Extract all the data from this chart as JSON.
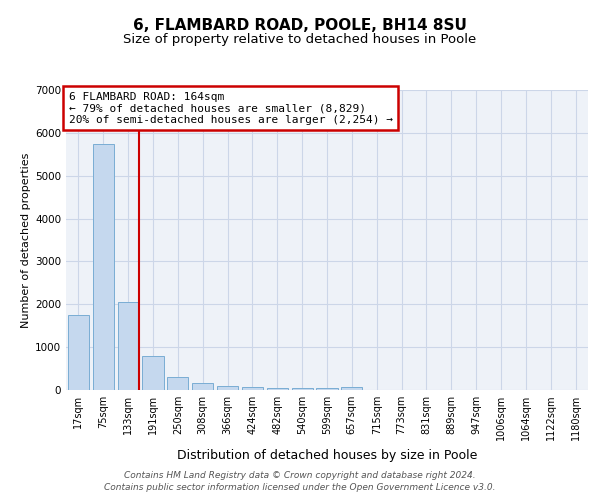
{
  "title": "6, FLAMBARD ROAD, POOLE, BH14 8SU",
  "subtitle": "Size of property relative to detached houses in Poole",
  "xlabel": "Distribution of detached houses by size in Poole",
  "ylabel": "Number of detached properties",
  "footer_line1": "Contains HM Land Registry data © Crown copyright and database right 2024.",
  "footer_line2": "Contains public sector information licensed under the Open Government Licence v3.0.",
  "categories": [
    "17sqm",
    "75sqm",
    "133sqm",
    "191sqm",
    "250sqm",
    "308sqm",
    "366sqm",
    "424sqm",
    "482sqm",
    "540sqm",
    "599sqm",
    "657sqm",
    "715sqm",
    "773sqm",
    "831sqm",
    "889sqm",
    "947sqm",
    "1006sqm",
    "1064sqm",
    "1122sqm",
    "1180sqm"
  ],
  "values": [
    1760,
    5750,
    2050,
    800,
    300,
    175,
    100,
    75,
    50,
    50,
    50,
    75,
    0,
    0,
    0,
    0,
    0,
    0,
    0,
    0,
    0
  ],
  "bar_color": "#c5d8ee",
  "bar_edge_color": "#7aadd4",
  "red_line_index": 2,
  "ylim": [
    0,
    7000
  ],
  "yticks": [
    0,
    1000,
    2000,
    3000,
    4000,
    5000,
    6000,
    7000
  ],
  "annotation_text": "6 FLAMBARD ROAD: 164sqm\n← 79% of detached houses are smaller (8,829)\n20% of semi-detached houses are larger (2,254) →",
  "annotation_box_color": "#ffffff",
  "annotation_border_color": "#cc0000",
  "grid_color": "#ccd6e8",
  "background_color": "#eef2f8",
  "title_fontsize": 11,
  "subtitle_fontsize": 9.5,
  "xlabel_fontsize": 9,
  "ylabel_fontsize": 8,
  "tick_fontsize": 7,
  "annotation_fontsize": 8,
  "footer_fontsize": 6.5
}
